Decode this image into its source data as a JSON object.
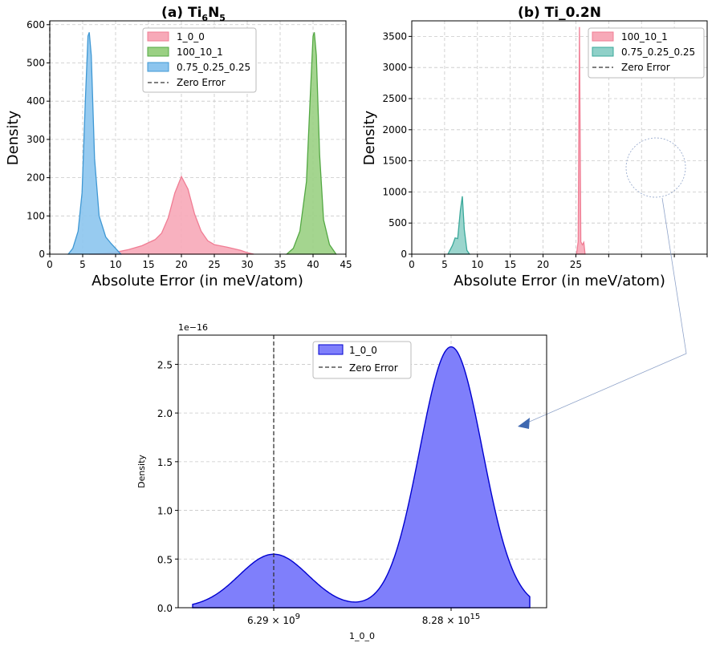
{
  "chart_data": [
    {
      "panel": "a",
      "type": "area",
      "title_prefix": "(a) Ti",
      "title_sub1": "6",
      "title_mid": "N",
      "title_sub2": "5",
      "xlabel": "Absolute Error (in meV/atom)",
      "ylabel": "Density",
      "xlim": [
        0,
        45
      ],
      "ylim": [
        0,
        610
      ],
      "xticks": [
        0,
        5,
        10,
        15,
        20,
        25,
        30,
        35,
        40,
        45
      ],
      "yticks": [
        0,
        100,
        200,
        300,
        400,
        500,
        600
      ],
      "series": [
        {
          "name": "1_0_0",
          "color": "#f07d94",
          "fill": "#f7a9b8",
          "points": [
            [
              6,
              0
            ],
            [
              8,
              2
            ],
            [
              10,
              5
            ],
            [
              12,
              12
            ],
            [
              14,
              22
            ],
            [
              16,
              38
            ],
            [
              17,
              55
            ],
            [
              18,
              95
            ],
            [
              19,
              160
            ],
            [
              20,
              203
            ],
            [
              21,
              170
            ],
            [
              22,
              105
            ],
            [
              23,
              60
            ],
            [
              24,
              35
            ],
            [
              25,
              25
            ],
            [
              27,
              18
            ],
            [
              29,
              10
            ],
            [
              30,
              4
            ],
            [
              31,
              0
            ]
          ]
        },
        {
          "name": "100_10_1",
          "color": "#53a843",
          "fill": "#9ad083",
          "points": [
            [
              36,
              0
            ],
            [
              37,
              15
            ],
            [
              38,
              60
            ],
            [
              39,
              190
            ],
            [
              39.6,
              420
            ],
            [
              40,
              570
            ],
            [
              40.2,
              580
            ],
            [
              40.5,
              520
            ],
            [
              41,
              260
            ],
            [
              41.6,
              90
            ],
            [
              42.5,
              25
            ],
            [
              43.5,
              0
            ]
          ]
        },
        {
          "name": "0.75_0.25_0.25",
          "color": "#3f98d4",
          "fill": "#8cc5ee",
          "points": [
            [
              2.8,
              0
            ],
            [
              3.5,
              15
            ],
            [
              4.3,
              60
            ],
            [
              4.9,
              160
            ],
            [
              5.4,
              400
            ],
            [
              5.8,
              570
            ],
            [
              6,
              580
            ],
            [
              6.3,
              520
            ],
            [
              6.8,
              250
            ],
            [
              7.5,
              100
            ],
            [
              8.5,
              45
            ],
            [
              9.3,
              28
            ],
            [
              10,
              15
            ],
            [
              10.8,
              0
            ]
          ]
        }
      ],
      "zero_error": {
        "name": "Zero Error",
        "x": 0
      }
    },
    {
      "panel": "b",
      "type": "area",
      "title": "(b) Ti_0.2N",
      "xlabel": "Absolute Error (in meV/atom)",
      "ylabel": "Density",
      "xlim": [
        0,
        45
      ],
      "ylim": [
        0,
        3750
      ],
      "xticks": [
        0,
        5,
        10,
        15,
        20,
        25
      ],
      "yticks": [
        0,
        500,
        1000,
        1500,
        2000,
        2500,
        3000,
        3500
      ],
      "series": [
        {
          "name": "100_10_1",
          "color": "#f07d94",
          "fill": "#f7a9b8",
          "points": [
            [
              25.1,
              0
            ],
            [
              25.35,
              200
            ],
            [
              25.55,
              3650
            ],
            [
              25.75,
              200
            ],
            [
              26,
              150
            ],
            [
              26.2,
              190
            ],
            [
              26.4,
              0
            ]
          ]
        },
        {
          "name": "0.75_0.25_0.25",
          "color": "#3aa89a",
          "fill": "#8fd0c8",
          "points": [
            [
              5.5,
              0
            ],
            [
              6.2,
              140
            ],
            [
              6.6,
              260
            ],
            [
              7,
              250
            ],
            [
              7.4,
              700
            ],
            [
              7.7,
              930
            ],
            [
              8,
              400
            ],
            [
              8.4,
              60
            ],
            [
              8.8,
              0
            ]
          ]
        }
      ],
      "zero_error": {
        "name": "Zero Error",
        "x": 0
      }
    },
    {
      "panel": "inset",
      "type": "area",
      "offset_label": "1e−16",
      "xlabel": "1_0_0",
      "ylabel": "Density",
      "ylim": [
        0,
        2.8
      ],
      "yticks": [
        0,
        0.5,
        1.0,
        1.5,
        2.0,
        2.5
      ],
      "ytick_labels": [
        "0.0",
        "0.5",
        "1.0",
        "1.5",
        "2.0",
        "2.5"
      ],
      "xtick_labels": [
        {
          "base": "6.29 × 10",
          "exp": "9"
        },
        {
          "base": "8.28 × 10",
          "exp": "15"
        }
      ],
      "peaks": [
        {
          "x_label": "6.29 × 10^9",
          "density": 0.55
        },
        {
          "x_label": "8.28 × 10^15",
          "density": 2.68
        }
      ],
      "series": [
        {
          "name": "1_0_0",
          "color": "#0000d0",
          "fill": "#7f7ffb"
        }
      ],
      "zero_error": {
        "name": "Zero Error"
      }
    }
  ]
}
